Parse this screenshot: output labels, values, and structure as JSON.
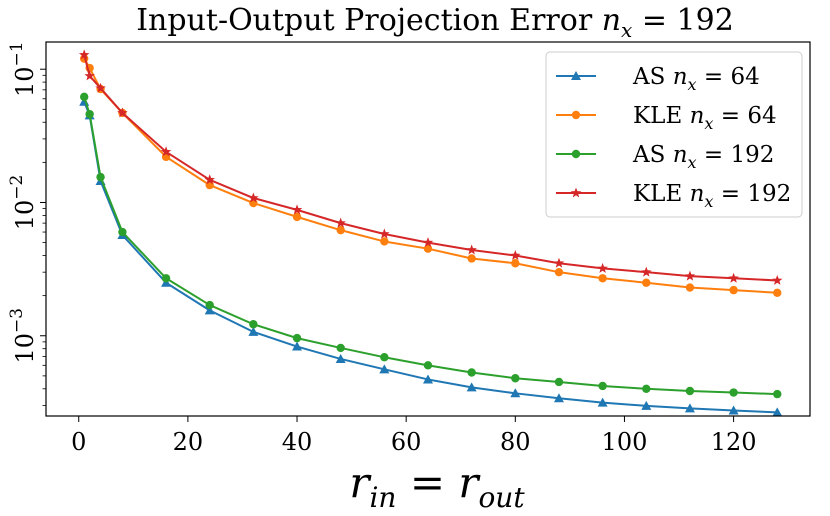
{
  "chart_data": {
    "type": "line",
    "title": "Input-Output Projection Error n_x = 192",
    "title_parts": {
      "prefix": "Input-Output Projection Error ",
      "var": "n",
      "sub": "x",
      "suffix": " = 192"
    },
    "xlabel": "r_in = r_out",
    "xlabel_parts": {
      "var1": "r",
      "sub1": "in",
      "eq": " = ",
      "var2": "r",
      "sub2": "out"
    },
    "ylabel": "",
    "yscale": "log",
    "xlim": [
      -6,
      134
    ],
    "ylim": [
      0.00025,
      0.16
    ],
    "x_ticks": [
      0,
      20,
      40,
      60,
      80,
      100,
      120
    ],
    "x_tick_labels": [
      "0",
      "20",
      "40",
      "60",
      "80",
      "100",
      "120"
    ],
    "y_ticks": [
      0.001,
      0.01,
      0.1
    ],
    "y_tick_labels": [
      {
        "base": "10",
        "exp": "−3"
      },
      {
        "base": "10",
        "exp": "−2"
      },
      {
        "base": "10",
        "exp": "−1"
      }
    ],
    "legend_position": "upper right",
    "x": [
      1,
      2,
      4,
      8,
      16,
      24,
      32,
      40,
      48,
      56,
      64,
      72,
      80,
      88,
      96,
      104,
      112,
      120,
      128
    ],
    "series": [
      {
        "name": "AS n_x = 64",
        "label_parts": {
          "prefix": "AS ",
          "var": "n",
          "sub": "x",
          "suffix": " = 64"
        },
        "color": "#1f77b4",
        "marker": "triangle",
        "values": [
          0.057,
          0.045,
          0.0145,
          0.0057,
          0.0025,
          0.00155,
          0.00107,
          0.00083,
          0.00067,
          0.00056,
          0.00047,
          0.00041,
          0.00037,
          0.00034,
          0.000315,
          0.000298,
          0.000285,
          0.000275,
          0.000266
        ]
      },
      {
        "name": "KLE n_x = 64",
        "label_parts": {
          "prefix": "KLE ",
          "var": "n",
          "sub": "x",
          "suffix": " = 64"
        },
        "color": "#ff7f0e",
        "marker": "circle",
        "values": [
          0.12,
          0.102,
          0.071,
          0.047,
          0.022,
          0.0135,
          0.0099,
          0.0078,
          0.0062,
          0.0051,
          0.0045,
          0.0038,
          0.0035,
          0.003,
          0.0027,
          0.0025,
          0.0023,
          0.0022,
          0.0021
        ]
      },
      {
        "name": "AS n_x = 192",
        "label_parts": {
          "prefix": "AS ",
          "var": "n",
          "sub": "x",
          "suffix": " = 192"
        },
        "color": "#2ca02c",
        "marker": "circle",
        "values": [
          0.062,
          0.046,
          0.0155,
          0.006,
          0.0027,
          0.0017,
          0.00122,
          0.00096,
          0.00081,
          0.00069,
          0.0006,
          0.00053,
          0.00048,
          0.00045,
          0.00042,
          0.0004,
          0.000385,
          0.000375,
          0.000365
        ]
      },
      {
        "name": "KLE n_x = 192",
        "label_parts": {
          "prefix": "KLE ",
          "var": "n",
          "sub": "x",
          "suffix": " = 192"
        },
        "color": "#d62728",
        "marker": "star",
        "values": [
          0.128,
          0.089,
          0.072,
          0.047,
          0.024,
          0.0148,
          0.0108,
          0.0088,
          0.007,
          0.0058,
          0.005,
          0.0044,
          0.004,
          0.0035,
          0.0032,
          0.003,
          0.0028,
          0.0027,
          0.0026
        ]
      }
    ]
  }
}
